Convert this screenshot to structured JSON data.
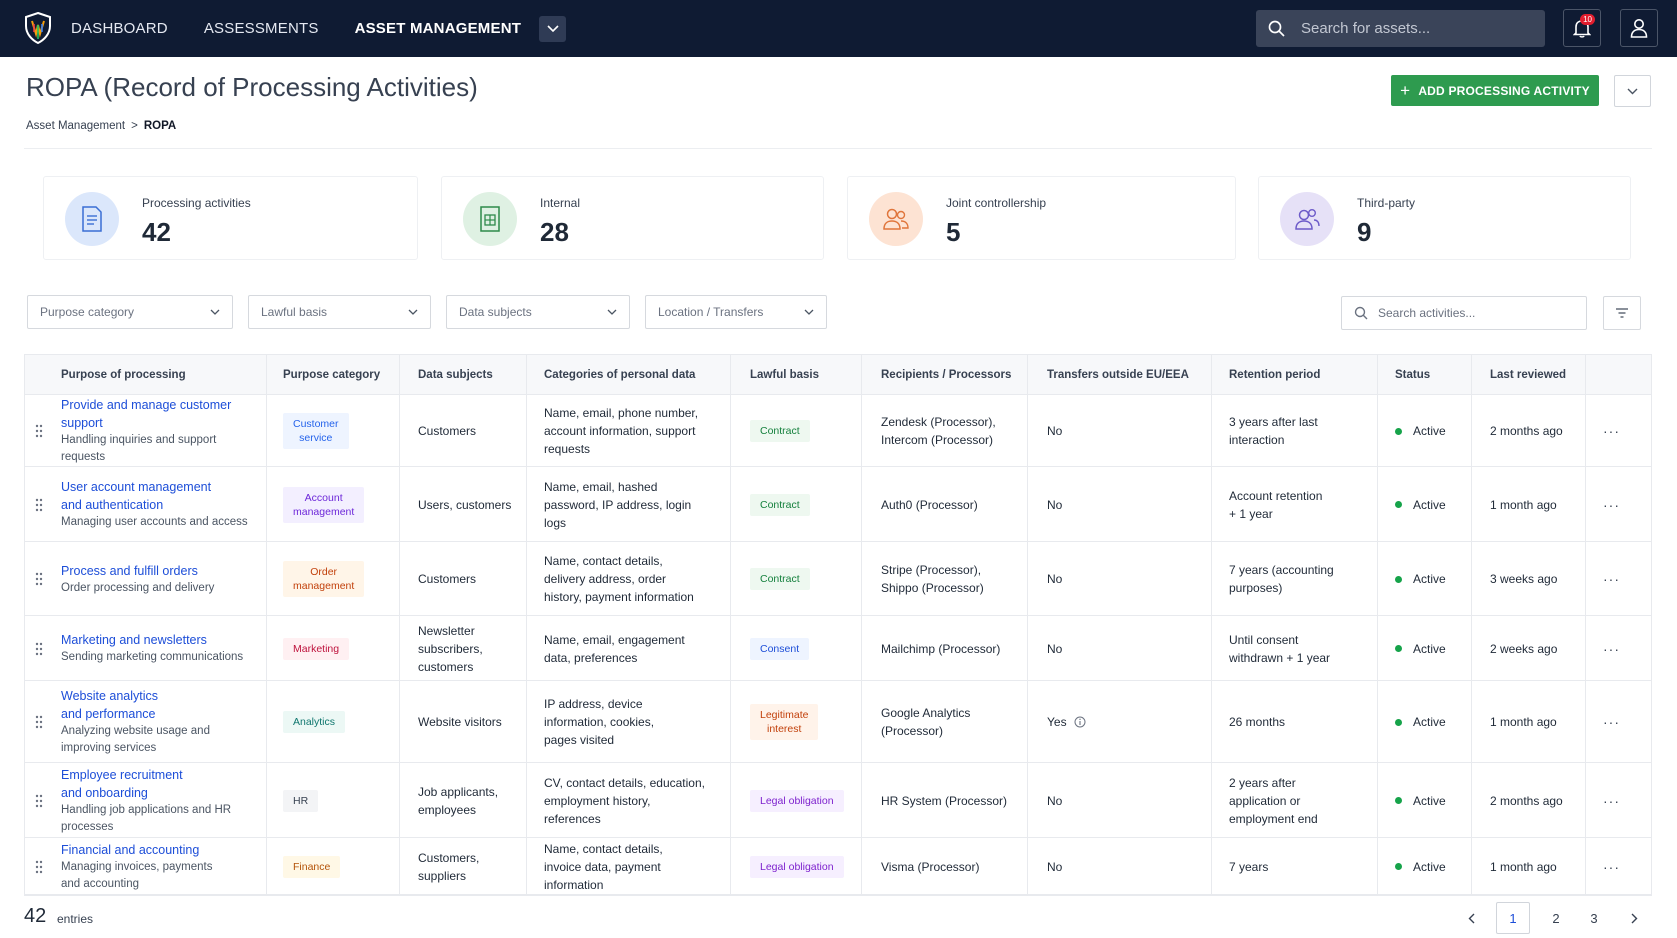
{
  "nav": {
    "items": [
      "DASHBOARD",
      "ASSESSMENTS",
      "ASSET MANAGEMENT"
    ],
    "search_placeholder": "Search for assets...",
    "notification_count": "10"
  },
  "page": {
    "title": "ROPA (Record of Processing Activities)",
    "breadcrumb": [
      "Asset Management",
      ">",
      "ROPA"
    ],
    "add_button": "ADD PROCESSING ACTIVITY"
  },
  "stats": [
    {
      "label": "Processing activities",
      "value": "42",
      "color": "#dbe7fb",
      "icon": "document-icon"
    },
    {
      "label": "Internal",
      "value": "28",
      "color": "#dff1e3",
      "icon": "spreadsheet-icon"
    },
    {
      "label": "Joint controllership",
      "value": "5",
      "color": "#fde3d3",
      "icon": "users-icon"
    },
    {
      "label": "Third-party",
      "value": "9",
      "color": "#e6e1f7",
      "icon": "user-group-icon"
    }
  ],
  "filters": [
    "Purpose category",
    "Lawful basis",
    "Data subjects",
    "Location / Transfers"
  ],
  "activity_search_placeholder": "Search activities...",
  "table": {
    "headers": [
      "Purpose of processing",
      "Purpose category",
      "Data subjects",
      "Categories of personal data",
      "Lawful basis",
      "Recipients / Processors",
      "Transfers outside EU/EEA",
      "Retention period",
      "Status",
      "Last reviewed"
    ],
    "rows": [
      {
        "title": [
          "Provide and manage customer",
          "support"
        ],
        "desc": [
          "Handling inquiries and support requests"
        ],
        "category": [
          "Customer",
          "service"
        ],
        "cat_color": "#2563eb",
        "cat_bg": "#eef4ff",
        "subjects": [
          "Customers"
        ],
        "data": [
          "Name, email, phone number,",
          "account information, support",
          "requests"
        ],
        "basis": [
          "Contract"
        ],
        "basis_color": "#15803d",
        "basis_bg": "#eef8f0",
        "recipients": [
          "Zendesk (Processor),",
          "Intercom (Processor)"
        ],
        "transfer": "No",
        "transfer_info": false,
        "retention": [
          "3 years after last",
          "interaction"
        ],
        "status": "Active",
        "reviewed": "2 months ago"
      },
      {
        "title": [
          "User account management",
          "and authentication"
        ],
        "desc": [
          "Managing user accounts and access"
        ],
        "category": [
          "Account",
          "management"
        ],
        "cat_color": "#6d28d9",
        "cat_bg": "#f3efff",
        "subjects": [
          "Users, customers"
        ],
        "data": [
          "Name, email, hashed",
          "password, IP address, login",
          "logs"
        ],
        "basis": [
          "Contract"
        ],
        "basis_color": "#15803d",
        "basis_bg": "#eef8f0",
        "recipients": [
          "Auth0 (Processor)"
        ],
        "transfer": "No",
        "transfer_info": false,
        "retention": [
          "Account retention",
          "+ 1 year"
        ],
        "status": "Active",
        "reviewed": "1 month ago"
      },
      {
        "title": [
          "Process and fulfill orders"
        ],
        "desc": [
          "Order processing and delivery"
        ],
        "category": [
          "Order",
          "management"
        ],
        "cat_color": "#c2410c",
        "cat_bg": "#fff5e8",
        "subjects": [
          "Customers"
        ],
        "data": [
          "Name, contact details,",
          "delivery address, order",
          "history, payment information"
        ],
        "basis": [
          "Contract"
        ],
        "basis_color": "#15803d",
        "basis_bg": "#eef8f0",
        "recipients": [
          "Stripe (Processor),",
          "Shippo (Processor)"
        ],
        "transfer": "No",
        "transfer_info": false,
        "retention": [
          "7 years (accounting",
          "purposes)"
        ],
        "status": "Active",
        "reviewed": "3 weeks ago"
      },
      {
        "title": [
          "Marketing and newsletters"
        ],
        "desc": [
          "Sending marketing communications"
        ],
        "category": [
          "Marketing"
        ],
        "cat_color": "#be123c",
        "cat_bg": "#fff0f2",
        "subjects": [
          "Newsletter",
          "subscribers,",
          "customers"
        ],
        "data": [
          "Name, email, engagement",
          "data, preferences"
        ],
        "basis": [
          "Consent"
        ],
        "basis_color": "#1d4ed8",
        "basis_bg": "#eef4ff",
        "recipients": [
          "Mailchimp (Processor)"
        ],
        "transfer": "No",
        "transfer_info": false,
        "retention": [
          "Until consent",
          "withdrawn + 1 year"
        ],
        "status": "Active",
        "reviewed": "2 weeks ago"
      },
      {
        "title": [
          "Website analytics",
          "and performance"
        ],
        "desc": [
          "Analyzing website usage and",
          "improving services"
        ],
        "category": [
          "Analytics"
        ],
        "cat_color": "#0f766e",
        "cat_bg": "#ecf8f5",
        "subjects": [
          "Website visitors"
        ],
        "data": [
          "IP address, device",
          "information, cookies,",
          "pages visited"
        ],
        "basis": [
          "Legitimate",
          "interest"
        ],
        "basis_color": "#c2410c",
        "basis_bg": "#fff3ea",
        "recipients": [
          "Google Analytics",
          "(Processor)"
        ],
        "transfer": "Yes",
        "transfer_info": true,
        "retention": [
          "26 months"
        ],
        "status": "Active",
        "reviewed": "1 month ago"
      },
      {
        "title": [
          "Employee recruitment",
          "and onboarding"
        ],
        "desc": [
          "Handling job applications and HR",
          "processes"
        ],
        "category": [
          "HR"
        ],
        "cat_color": "#374151",
        "cat_bg": "#f3f4f6",
        "subjects": [
          "Job applicants,",
          "employees"
        ],
        "data": [
          "CV, contact details, education,",
          "employment history,",
          "references"
        ],
        "basis": [
          "Legal obligation"
        ],
        "basis_color": "#7e22ce",
        "basis_bg": "#f6efff",
        "recipients": [
          "HR System (Processor)"
        ],
        "transfer": "No",
        "transfer_info": false,
        "retention": [
          "2 years after",
          "application or",
          "employment end"
        ],
        "status": "Active",
        "reviewed": "2 months ago"
      },
      {
        "title": [
          "Financial and accounting"
        ],
        "desc": [
          "Managing invoices, payments",
          "and accounting"
        ],
        "category": [
          "Finance"
        ],
        "cat_color": "#b45309",
        "cat_bg": "#fff8e6",
        "subjects": [
          "Customers,",
          "suppliers"
        ],
        "data": [
          "Name, contact details,",
          "invoice data, payment",
          "information"
        ],
        "basis": [
          "Legal obligation"
        ],
        "basis_color": "#7e22ce",
        "basis_bg": "#f6efff",
        "recipients": [
          "Visma (Processor)"
        ],
        "transfer": "No",
        "transfer_info": false,
        "retention": [
          "7 years"
        ],
        "status": "Active",
        "reviewed": "1 month ago"
      }
    ]
  },
  "footer": {
    "count": "42",
    "count_label": "entries",
    "pages": [
      "1",
      "2",
      "3"
    ],
    "current_page": "1"
  }
}
